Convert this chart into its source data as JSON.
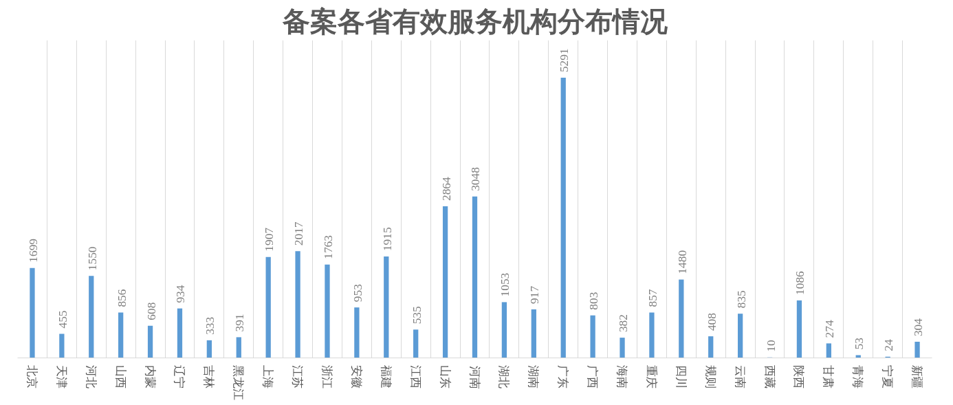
{
  "chart_data": {
    "type": "bar",
    "title": "备案各省有效服务机构分布情况",
    "categories": [
      "北京",
      "天津",
      "河北",
      "山西",
      "内蒙",
      "辽宁",
      "吉林",
      "黑龙江",
      "上海",
      "江苏",
      "浙江",
      "安徽",
      "福建",
      "江西",
      "山东",
      "河南",
      "湖北",
      "湖南",
      "广东",
      "广西",
      "海南",
      "重庆",
      "四川",
      "规则",
      "云南",
      "西藏",
      "陕西",
      "甘肃",
      "青海",
      "宁夏",
      "新疆"
    ],
    "values": [
      1699,
      455,
      1550,
      856,
      608,
      934,
      333,
      391,
      1907,
      2017,
      1763,
      953,
      1915,
      535,
      2864,
      3048,
      1053,
      917,
      5291,
      803,
      382,
      857,
      1480,
      408,
      835,
      10,
      1086,
      274,
      53,
      24,
      304
    ],
    "color": "#5b9bd5",
    "ylim": [
      0,
      6000
    ],
    "data_labels": true,
    "grid": "x",
    "tick_labels": "x"
  }
}
